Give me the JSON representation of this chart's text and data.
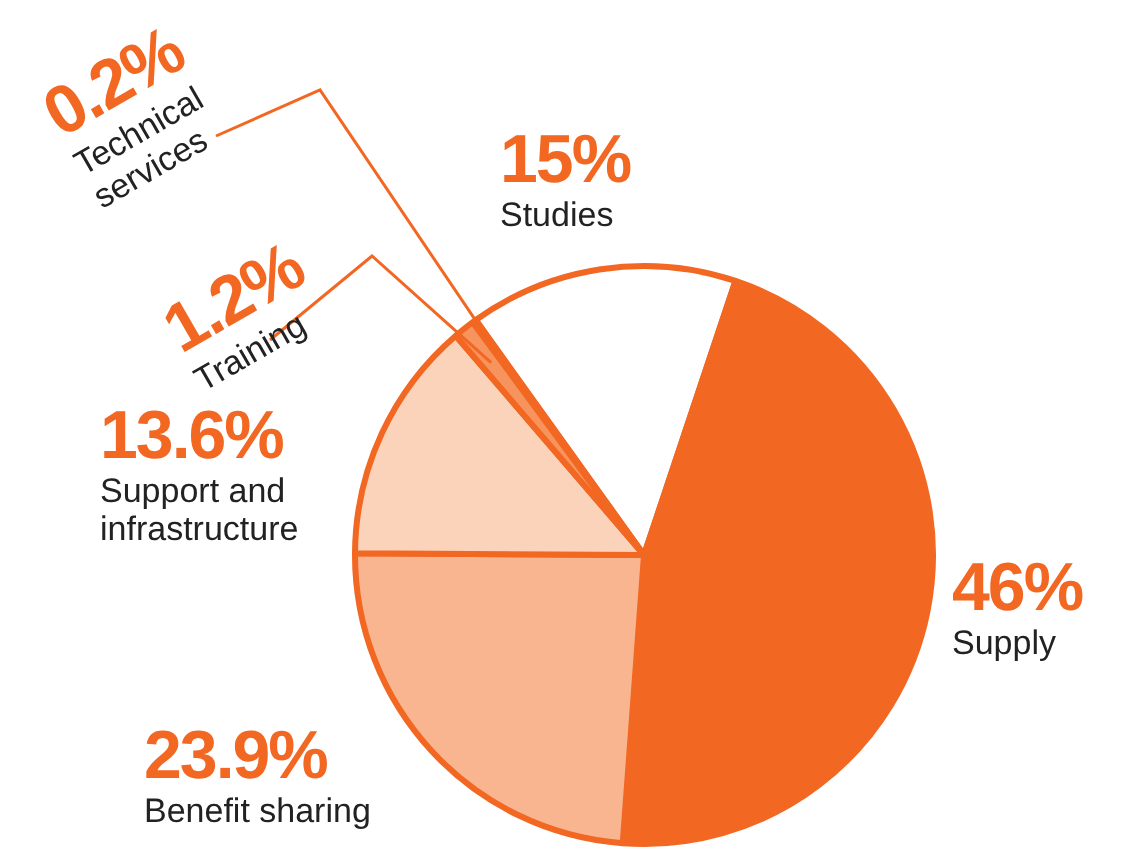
{
  "chart_data": {
    "type": "pie",
    "categories": [
      "Studies",
      "Supply",
      "Benefit sharing",
      "Support and infrastructure",
      "Training",
      "Technical services"
    ],
    "values": [
      15,
      46,
      23.9,
      13.6,
      1.2,
      0.2
    ],
    "colors": [
      "#ffffff",
      "#f26722",
      "#f9b590",
      "#fbd3bb",
      "#f7935c",
      "#f26722"
    ],
    "value_labels": [
      "15%",
      "46%",
      "23.9%",
      "13.6%",
      "1.2%",
      "0.2%"
    ],
    "legend": false
  }
}
